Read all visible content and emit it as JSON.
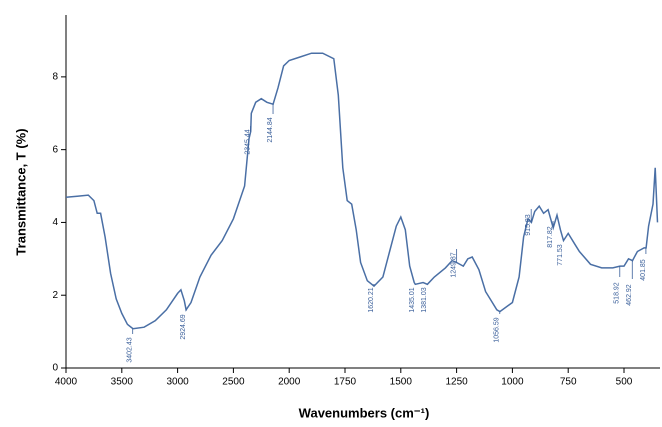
{
  "chart_data": {
    "type": "line",
    "ylabel": "Transmittance, T (%)",
    "xlabel": "Wavenumbers (cm⁻¹)",
    "color": "#4a6fa5",
    "x": [
      4000,
      3900,
      3800,
      3750,
      3720,
      3690,
      3650,
      3600,
      3550,
      3500,
      3450,
      3400,
      3300,
      3200,
      3100,
      3000,
      2970,
      2940,
      2924,
      2880,
      2800,
      2700,
      2600,
      2500,
      2400,
      2360,
      2345,
      2340,
      2300,
      2250,
      2200,
      2144,
      2100,
      2050,
      2000,
      1950,
      1900,
      1850,
      1800,
      1780,
      1760,
      1740,
      1720,
      1700,
      1680,
      1650,
      1620,
      1580,
      1550,
      1520,
      1500,
      1480,
      1460,
      1440,
      1435,
      1400,
      1381,
      1350,
      1300,
      1270,
      1250,
      1220,
      1200,
      1180,
      1150,
      1120,
      1100,
      1070,
      1056,
      1000,
      970,
      950,
      930,
      915,
      900,
      880,
      860,
      840,
      817,
      800,
      785,
      771,
      750,
      720,
      700,
      650,
      600,
      550,
      518,
      500,
      480,
      462,
      440,
      410,
      401,
      390,
      370,
      360,
      350
    ],
    "values": [
      4.69,
      4.72,
      4.75,
      4.6,
      4.25,
      4.25,
      3.6,
      2.6,
      1.9,
      1.5,
      1.2,
      1.08,
      1.12,
      1.3,
      1.6,
      2.05,
      2.15,
      1.85,
      1.6,
      1.8,
      2.5,
      3.1,
      3.5,
      4.1,
      5.0,
      6.3,
      6.5,
      7.0,
      7.3,
      7.4,
      7.3,
      7.25,
      7.7,
      8.3,
      8.45,
      8.55,
      8.65,
      8.65,
      8.5,
      7.5,
      5.5,
      4.6,
      4.5,
      3.8,
      2.9,
      2.4,
      2.25,
      2.5,
      3.2,
      3.9,
      4.15,
      3.8,
      2.8,
      2.35,
      2.3,
      2.35,
      2.3,
      2.5,
      2.75,
      2.95,
      2.9,
      2.8,
      3.0,
      3.05,
      2.7,
      2.1,
      1.9,
      1.6,
      1.55,
      1.8,
      2.5,
      3.6,
      4.1,
      4.0,
      4.3,
      4.45,
      4.25,
      4.35,
      3.85,
      4.2,
      3.8,
      3.5,
      3.7,
      3.4,
      3.2,
      2.85,
      2.75,
      2.75,
      2.8,
      2.8,
      3.0,
      2.95,
      3.2,
      3.3,
      3.3,
      3.9,
      4.5,
      5.5,
      4.0
    ],
    "xlim": [
      4000,
      350
    ],
    "xticks": [
      4000,
      3500,
      3000,
      2500,
      2000,
      1750,
      1500,
      1250,
      1000,
      750,
      500
    ],
    "ylim": [
      0,
      9.7
    ],
    "yticks": [
      0,
      2,
      4,
      6,
      8
    ],
    "peak_labels": [
      3402.43,
      2924.69,
      2345.44,
      2144.84,
      1620.21,
      1435.01,
      1381.03,
      1249.87,
      1056.59,
      915.83,
      817.82,
      771.53,
      518.92,
      462.92,
      401.85
    ]
  }
}
